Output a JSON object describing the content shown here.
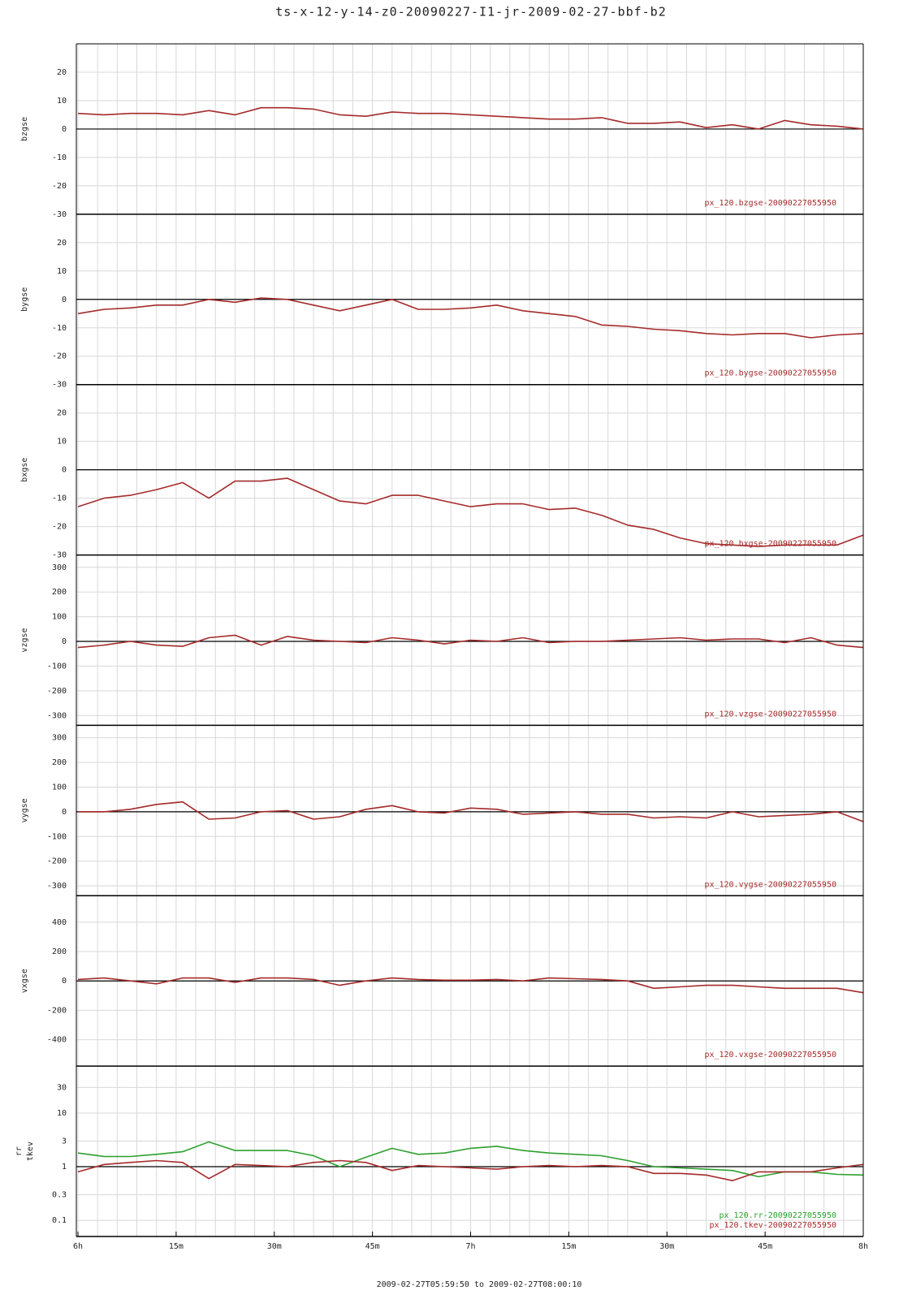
{
  "title": "ts-x-12-y-14-z0-20090227-I1-jr-2009-02-27-bbf-b2",
  "x_axis": {
    "x": [
      0,
      4,
      8,
      12,
      16,
      20,
      24,
      28,
      32,
      36,
      40,
      44,
      48,
      52,
      56,
      60,
      64,
      68,
      72,
      76,
      80,
      84,
      88,
      92,
      96,
      100,
      104,
      108,
      112,
      116,
      120
    ],
    "xlim": [
      -0.25,
      120
    ],
    "xticks": [
      {
        "value": 0,
        "label": "6h"
      },
      {
        "value": 15,
        "label": "15m"
      },
      {
        "value": 30,
        "label": "30m"
      },
      {
        "value": 45,
        "label": "45m"
      },
      {
        "value": 60,
        "label": "7h"
      },
      {
        "value": 75,
        "label": "15m"
      },
      {
        "value": 90,
        "label": "30m"
      },
      {
        "value": 105,
        "label": "45m"
      },
      {
        "value": 120,
        "label": "8h"
      }
    ],
    "xgrid": [
      0,
      3,
      6,
      9,
      12,
      15,
      18,
      21,
      24,
      27,
      30,
      33,
      36,
      39,
      42,
      45,
      48,
      51,
      54,
      57,
      60,
      63,
      66,
      69,
      72,
      75,
      78,
      81,
      84,
      87,
      90,
      93,
      96,
      99,
      102,
      105,
      108,
      111,
      114,
      117,
      120
    ],
    "caption": "2009-02-27T05:59:50 to 2009-02-27T08:00:10"
  },
  "chart_data": [
    {
      "type": "line",
      "ylabel": [
        "bzgse"
      ],
      "ylim": [
        -30,
        30
      ],
      "yticks": [
        -30,
        -20,
        -10,
        0,
        10,
        20
      ],
      "log": false,
      "ref_line": 0,
      "series": [
        {
          "name": "px_120.bzgse-20090227055950",
          "color": "#a52a2a",
          "values": [
            5.5,
            5,
            5.5,
            5.5,
            5,
            6.5,
            5,
            7.5,
            7.5,
            7,
            5,
            4.5,
            6,
            5.5,
            5.5,
            5,
            4.5,
            4,
            3.5,
            3.5,
            4,
            2,
            2,
            2.5,
            0.5,
            1.5,
            0,
            3,
            1.5,
            1,
            0
          ]
        }
      ]
    },
    {
      "type": "line",
      "ylabel": [
        "bygse"
      ],
      "ylim": [
        -30,
        30
      ],
      "yticks": [
        -30,
        -20,
        -10,
        0,
        10,
        20
      ],
      "log": false,
      "ref_line": 0,
      "series": [
        {
          "name": "px_120.bygse-20090227055950",
          "color": "#a52a2a",
          "values": [
            -5,
            -3.5,
            -3,
            -2,
            -2,
            0,
            -1,
            0.5,
            0,
            -2,
            -4,
            -2,
            0,
            -3.5,
            -3.5,
            -3,
            -2,
            -4,
            -5,
            -6,
            -9,
            -9.5,
            -10.5,
            -11,
            -12,
            -12.5,
            -12,
            -12,
            -13.5,
            -12.5,
            -12
          ]
        }
      ]
    },
    {
      "type": "line",
      "ylabel": [
        "bxgse"
      ],
      "ylim": [
        -30,
        30
      ],
      "yticks": [
        -30,
        -20,
        -10,
        0,
        10,
        20
      ],
      "log": false,
      "ref_line": 0,
      "series": [
        {
          "name": "px_120.bxgse-20090227055950",
          "color": "#a52a2a",
          "values": [
            -13,
            -10,
            -9,
            -7,
            -4.5,
            -10,
            -4,
            -4,
            -3,
            -7,
            -11,
            -12,
            -9,
            -9,
            -11,
            -13,
            -12,
            -12,
            -14,
            -13.5,
            -16,
            -19.5,
            -21,
            -24,
            -26,
            -26.5,
            -27,
            -26.5,
            -26.5,
            -26.5,
            -23
          ]
        }
      ]
    },
    {
      "type": "line",
      "ylabel": [
        "vzgse"
      ],
      "ylim": [
        -340,
        350
      ],
      "yticks": [
        -300,
        -200,
        -100,
        0,
        100,
        200,
        300
      ],
      "log": false,
      "ref_line": 0,
      "series": [
        {
          "name": "px_120.vzgse-20090227055950",
          "color": "#a52a2a",
          "values": [
            -25,
            -15,
            0,
            -15,
            -20,
            15,
            25,
            -15,
            20,
            5,
            0,
            -5,
            15,
            5,
            -10,
            5,
            0,
            15,
            -5,
            0,
            0,
            5,
            10,
            15,
            5,
            10,
            10,
            -5,
            15,
            -15,
            -25
          ]
        }
      ]
    },
    {
      "type": "line",
      "ylabel": [
        "vygse"
      ],
      "ylim": [
        -340,
        350
      ],
      "yticks": [
        -300,
        -200,
        -100,
        0,
        100,
        200,
        300
      ],
      "log": false,
      "ref_line": 0,
      "series": [
        {
          "name": "px_120.vygse-20090227055950",
          "color": "#a52a2a",
          "values": [
            0,
            0,
            10,
            30,
            40,
            -30,
            -25,
            0,
            5,
            -30,
            -20,
            10,
            25,
            0,
            -5,
            15,
            10,
            -10,
            -5,
            0,
            -10,
            -10,
            -25,
            -20,
            -25,
            0,
            -20,
            -15,
            -10,
            0,
            -40
          ]
        }
      ]
    },
    {
      "type": "line",
      "ylabel": [
        "vxgse"
      ],
      "ylim": [
        -580,
        580
      ],
      "yticks": [
        -400,
        -200,
        0,
        200,
        400
      ],
      "log": false,
      "ref_line": 0,
      "series": [
        {
          "name": "px_120.vxgse-20090227055950",
          "color": "#a52a2a",
          "values": [
            10,
            20,
            0,
            -20,
            20,
            20,
            -10,
            20,
            20,
            10,
            -30,
            0,
            20,
            10,
            5,
            5,
            10,
            0,
            20,
            15,
            10,
            0,
            -50,
            -40,
            -30,
            -30,
            -40,
            -50,
            -50,
            -50,
            -80
          ]
        }
      ]
    },
    {
      "type": "line",
      "ylabel": [
        "rr",
        "tkev"
      ],
      "ylim": [
        0.05,
        75
      ],
      "yticks": [
        0.1,
        0.3,
        1,
        3,
        10,
        30
      ],
      "log": true,
      "ref_line": 1,
      "series": [
        {
          "name": "px_120.rr-20090227055950",
          "color": "#2ca02c",
          "values": [
            1.8,
            1.55,
            1.55,
            1.7,
            1.9,
            2.9,
            2,
            2,
            2,
            1.6,
            1,
            1.5,
            2.2,
            1.7,
            1.8,
            2.2,
            2.4,
            2,
            1.8,
            1.7,
            1.6,
            1.3,
            1,
            0.95,
            0.9,
            0.85,
            0.65,
            0.8,
            0.8,
            0.72,
            0.7
          ]
        },
        {
          "name": "px_120.tkev-20090227055950",
          "color": "#a52a2a",
          "values": [
            0.8,
            1.1,
            1.2,
            1.3,
            1.2,
            0.6,
            1.1,
            1.05,
            1,
            1.2,
            1.3,
            1.2,
            0.85,
            1.05,
            1,
            0.95,
            0.9,
            1,
            1.05,
            1,
            1.05,
            1,
            0.75,
            0.75,
            0.7,
            0.55,
            0.8,
            0.8,
            0.8,
            0.95,
            1.1
          ]
        }
      ]
    }
  ]
}
